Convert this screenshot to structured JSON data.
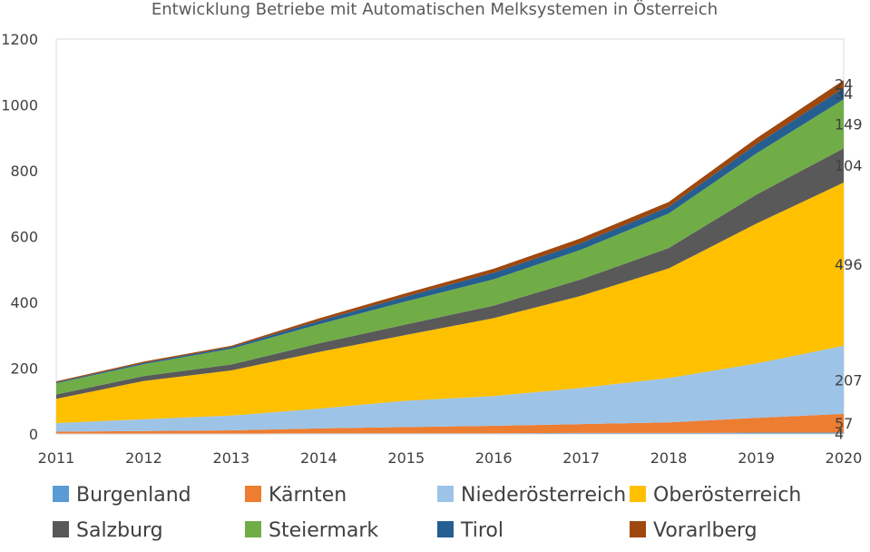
{
  "chart_data": {
    "type": "area",
    "stacked": true,
    "title": "Entwicklung Betriebe mit Automatischen Melksystemen in Österreich",
    "xlabel": "",
    "ylabel": "",
    "ylim": [
      0,
      1200
    ],
    "y_ticks": [
      "0",
      "200",
      "400",
      "600",
      "800",
      "1000",
      "1200"
    ],
    "categories": [
      "2011",
      "2012",
      "2013",
      "2014",
      "2015",
      "2016",
      "2017",
      "2018",
      "2019",
      "2020"
    ],
    "grid": false,
    "legend_position": "bottom",
    "series": [
      {
        "name": "Burgenland",
        "color": "#5B9BD5",
        "values": [
          1,
          1,
          1,
          2,
          2,
          2,
          3,
          3,
          4,
          4
        ],
        "end_label": "4"
      },
      {
        "name": "Kärnten",
        "color": "#ED7D31",
        "values": [
          6,
          8,
          10,
          15,
          19,
          23,
          27,
          32,
          45,
          57
        ],
        "end_label": "57"
      },
      {
        "name": "Niederösterreich",
        "color": "#9DC3E6",
        "values": [
          26,
          36,
          45,
          60,
          80,
          90,
          110,
          135,
          165,
          207
        ],
        "end_label": "207"
      },
      {
        "name": "Oberösterreich",
        "color": "#FFC000",
        "values": [
          74,
          116,
          137,
          172,
          200,
          237,
          280,
          333,
          425,
          496
        ],
        "end_label": "496"
      },
      {
        "name": "Salzburg",
        "color": "#595959",
        "values": [
          13,
          15,
          18,
          26,
          32,
          38,
          50,
          62,
          88,
          104
        ],
        "end_label": "104"
      },
      {
        "name": "Steiermark",
        "color": "#70AD47",
        "values": [
          34,
          36,
          48,
          58,
          70,
          80,
          90,
          105,
          125,
          149
        ],
        "end_label": "149"
      },
      {
        "name": "Tirol",
        "color": "#255E91",
        "values": [
          3,
          4,
          5,
          10,
          15,
          20,
          20,
          20,
          28,
          34
        ],
        "end_label": "34"
      },
      {
        "name": "Vorarlberg",
        "color": "#9E480E",
        "values": [
          3,
          4,
          4,
          8,
          10,
          12,
          15,
          15,
          18,
          24
        ],
        "end_label": "24"
      }
    ]
  }
}
